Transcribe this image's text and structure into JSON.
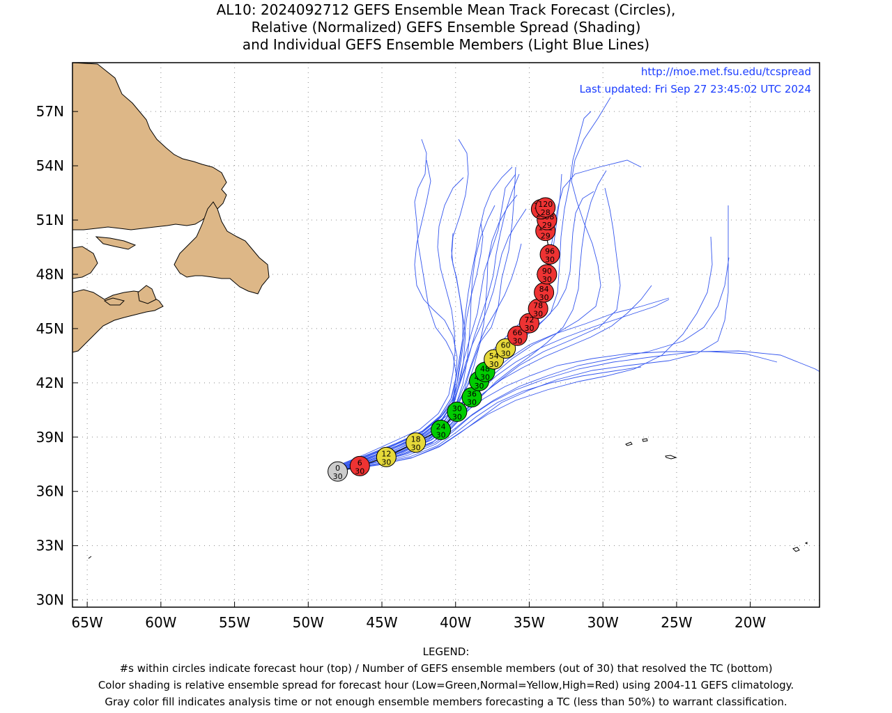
{
  "title": {
    "line1": "AL10: 2024092712 GEFS Ensemble Mean Track Forecast (Circles),",
    "line2": "Relative (Normalized) GEFS Ensemble Spread (Shading)",
    "line3": "and Individual GEFS Ensemble Members (Light Blue Lines)"
  },
  "credits": {
    "url": "http://moe.met.fsu.edu/tcspread",
    "updated": "Last updated: Fri Sep 27 23:45:02 UTC 2024"
  },
  "axes": {
    "lon_labels": [
      "65W",
      "60W",
      "55W",
      "50W",
      "45W",
      "40W",
      "35W",
      "30W",
      "25W",
      "20W"
    ],
    "lat_labels": [
      "57N",
      "54N",
      "51N",
      "48N",
      "45N",
      "42N",
      "39N",
      "36N",
      "33N",
      "30N"
    ],
    "lon_values": [
      -65,
      -60,
      -55,
      -50,
      -45,
      -40,
      -35,
      -30,
      -25,
      -20
    ],
    "lat_values": [
      57,
      54,
      51,
      48,
      45,
      42,
      39,
      36,
      33,
      30
    ],
    "lon_range": [
      -66,
      -15.3
    ],
    "lat_range": [
      29.6,
      59.7
    ]
  },
  "colors": {
    "gray": "#cccccc",
    "green": "#00cc00",
    "yellow": "#e6d93a",
    "red": "#ee3333",
    "member_track": "#3355ee",
    "land": "#ddb787",
    "url_text": "#1a3cff"
  },
  "mean_track": [
    {
      "hour": "0",
      "members": "30",
      "lon": -48.0,
      "lat": 37.1,
      "shade": "gray"
    },
    {
      "hour": "6",
      "members": "30",
      "lon": -46.5,
      "lat": 37.4,
      "shade": "red"
    },
    {
      "hour": "12",
      "members": "30",
      "lon": -44.7,
      "lat": 37.9,
      "shade": "yellow"
    },
    {
      "hour": "18",
      "members": "30",
      "lon": -42.7,
      "lat": 38.7,
      "shade": "yellow"
    },
    {
      "hour": "24",
      "members": "30",
      "lon": -41.0,
      "lat": 39.4,
      "shade": "green"
    },
    {
      "hour": "30",
      "members": "30",
      "lon": -39.9,
      "lat": 40.4,
      "shade": "green"
    },
    {
      "hour": "36",
      "members": "30",
      "lon": -38.9,
      "lat": 41.2,
      "shade": "green"
    },
    {
      "hour": "42",
      "members": "30",
      "lon": -38.4,
      "lat": 42.1,
      "shade": "green"
    },
    {
      "hour": "48",
      "members": "30",
      "lon": -38.0,
      "lat": 42.6,
      "shade": "green"
    },
    {
      "hour": "54",
      "members": "30",
      "lon": -37.4,
      "lat": 43.3,
      "shade": "yellow"
    },
    {
      "hour": "60",
      "members": "30",
      "lon": -36.6,
      "lat": 43.9,
      "shade": "yellow"
    },
    {
      "hour": "66",
      "members": "30",
      "lon": -35.8,
      "lat": 44.6,
      "shade": "red"
    },
    {
      "hour": "72",
      "members": "30",
      "lon": -35.0,
      "lat": 45.3,
      "shade": "red"
    },
    {
      "hour": "78",
      "members": "30",
      "lon": -34.4,
      "lat": 46.1,
      "shade": "red"
    },
    {
      "hour": "84",
      "members": "30",
      "lon": -34.0,
      "lat": 47.0,
      "shade": "red"
    },
    {
      "hour": "90",
      "members": "30",
      "lon": -33.8,
      "lat": 48.0,
      "shade": "red"
    },
    {
      "hour": "96",
      "members": "30",
      "lon": -33.6,
      "lat": 49.1,
      "shade": "red"
    },
    {
      "hour": "102",
      "members": "29",
      "lon": -33.9,
      "lat": 50.4,
      "shade": "red"
    },
    {
      "hour": "108",
      "members": "29",
      "lon": -33.8,
      "lat": 51.0,
      "shade": "red"
    },
    {
      "hour": "114",
      "members": "29",
      "lon": -34.2,
      "lat": 51.6,
      "shade": "red"
    },
    {
      "hour": "120",
      "members": "28",
      "lon": -33.9,
      "lat": 51.7,
      "shade": "red"
    }
  ],
  "legend": {
    "heading": "LEGEND:",
    "line1": "#s within circles indicate forecast hour (top) / Number of GEFS ensemble members (out of 30) that resolved the TC (bottom)",
    "line2": "Color shading is relative ensemble spread for forecast hour (Low=Green,Normal=Yellow,High=Red) using 2004-11 GEFS climatology.",
    "line3": "Gray color fill indicates analysis time or not enough ensemble members forecasting a TC (less than 50%) to warrant classification."
  }
}
